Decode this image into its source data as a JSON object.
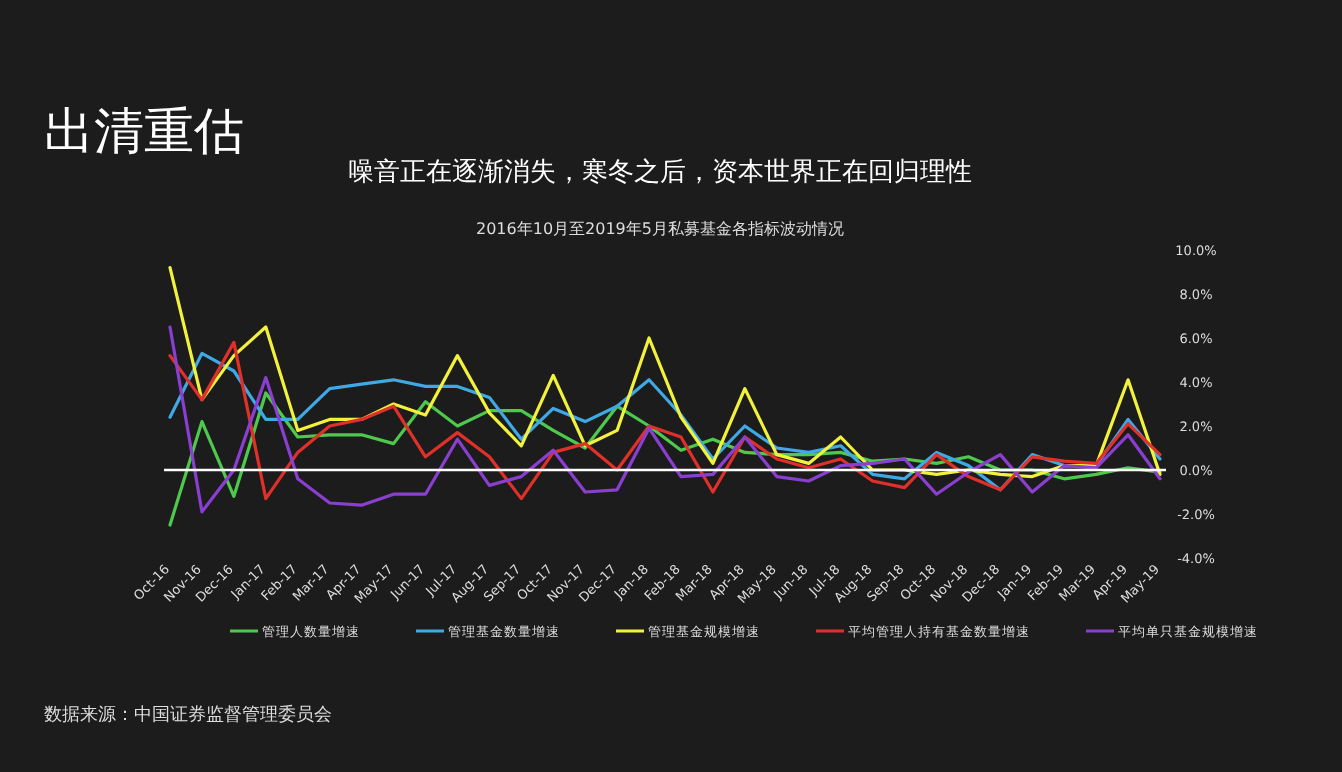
{
  "chart_data": {
    "type": "line",
    "title": "出清重估",
    "subtitle": "噪音正在逐渐消失，寒冬之后，资本世界正在回归理性",
    "annotations": [
      "2016年10月至2019年5月私募基金各指标波动情况",
      "数据来源：中国证券监督管理委员会"
    ],
    "categories": [
      "Oct-16",
      "Nov-16",
      "Dec-16",
      "Jan-17",
      "Feb-17",
      "Mar-17",
      "Apr-17",
      "May-17",
      "Jun-17",
      "Jul-17",
      "Aug-17",
      "Sep-17",
      "Oct-17",
      "Nov-17",
      "Dec-17",
      "Jan-18",
      "Feb-18",
      "Mar-18",
      "Apr-18",
      "May-18",
      "Jun-18",
      "Jul-18",
      "Aug-18",
      "Sep-18",
      "Oct-18",
      "Nov-18",
      "Dec-18",
      "Jan-19",
      "Feb-19",
      "Mar-19",
      "Apr-19",
      "May-19"
    ],
    "series": [
      {
        "name": "管理人数量增速",
        "color": "#4ec94e",
        "values": [
          -2.5,
          2.2,
          -1.2,
          3.5,
          1.5,
          1.6,
          1.6,
          1.2,
          3.1,
          2.0,
          2.7,
          2.7,
          1.8,
          1.0,
          2.9,
          2.0,
          0.9,
          1.4,
          0.8,
          0.7,
          0.7,
          0.8,
          0.4,
          0.5,
          0.3,
          0.6,
          0,
          0,
          -0.4,
          -0.2,
          0.1,
          -0.1
        ]
      },
      {
        "name": "管理基金数量增速",
        "color": "#3fa9e6",
        "values": [
          2.4,
          5.3,
          4.5,
          2.3,
          2.3,
          3.7,
          3.9,
          4.1,
          3.8,
          3.8,
          3.3,
          1.4,
          2.8,
          2.2,
          2.9,
          4.1,
          2.5,
          0.5,
          2.0,
          1.0,
          0.8,
          1.1,
          -0.2,
          -0.4,
          0.8,
          0.2,
          -0.9,
          0.7,
          0.2,
          0.2,
          2.3,
          0.5
        ]
      },
      {
        "name": "管理基金规模增速",
        "color": "#f2f23c",
        "values": [
          9.2,
          3.2,
          5.2,
          6.5,
          1.8,
          2.3,
          2.3,
          3.0,
          2.5,
          5.2,
          2.6,
          1.1,
          4.3,
          1.1,
          1.8,
          6.0,
          2.4,
          0.3,
          3.7,
          0.7,
          0.3,
          1.5,
          0,
          0,
          -0.2,
          0,
          -0.2,
          -0.3,
          0.2,
          0.2,
          4.1,
          -0.2
        ]
      },
      {
        "name": "平均管理人持有基金数量增速",
        "color": "#e0302a",
        "values": [
          5.2,
          3.2,
          5.8,
          -1.3,
          0.8,
          2.0,
          2.3,
          2.9,
          0.6,
          1.7,
          0.6,
          -1.3,
          0.8,
          1.2,
          0,
          2.0,
          1.5,
          -1.0,
          1.5,
          0.5,
          0.1,
          0.5,
          -0.5,
          -0.8,
          0.7,
          -0.3,
          -0.9,
          0.6,
          0.4,
          0.3,
          2.1,
          0.7
        ]
      },
      {
        "name": "平均单只基金规模增速",
        "color": "#8a3fd0",
        "values": [
          6.5,
          -1.9,
          0,
          4.2,
          -0.4,
          -1.5,
          -1.6,
          -1.1,
          -1.1,
          1.4,
          -0.7,
          -0.3,
          0.9,
          -1.0,
          -0.9,
          1.9,
          -0.3,
          -0.2,
          1.5,
          -0.3,
          -0.5,
          0.2,
          0.3,
          0.5,
          -1.1,
          -0.1,
          0.7,
          -1.0,
          0.2,
          0.1,
          1.6,
          -0.4
        ]
      }
    ],
    "ylim": [
      -4,
      10
    ],
    "yticks": [
      {
        "value": 10,
        "label": "10.0%"
      },
      {
        "value": 8,
        "label": "8.0%"
      },
      {
        "value": 6,
        "label": "6.0%"
      },
      {
        "value": 4,
        "label": "4.0%"
      },
      {
        "value": 2,
        "label": "2.0%"
      },
      {
        "value": 0,
        "label": "0.0%"
      },
      {
        "value": -2,
        "label": "-2.0%"
      },
      {
        "value": -4,
        "label": "-4.0%"
      }
    ],
    "legend": "bottom"
  }
}
